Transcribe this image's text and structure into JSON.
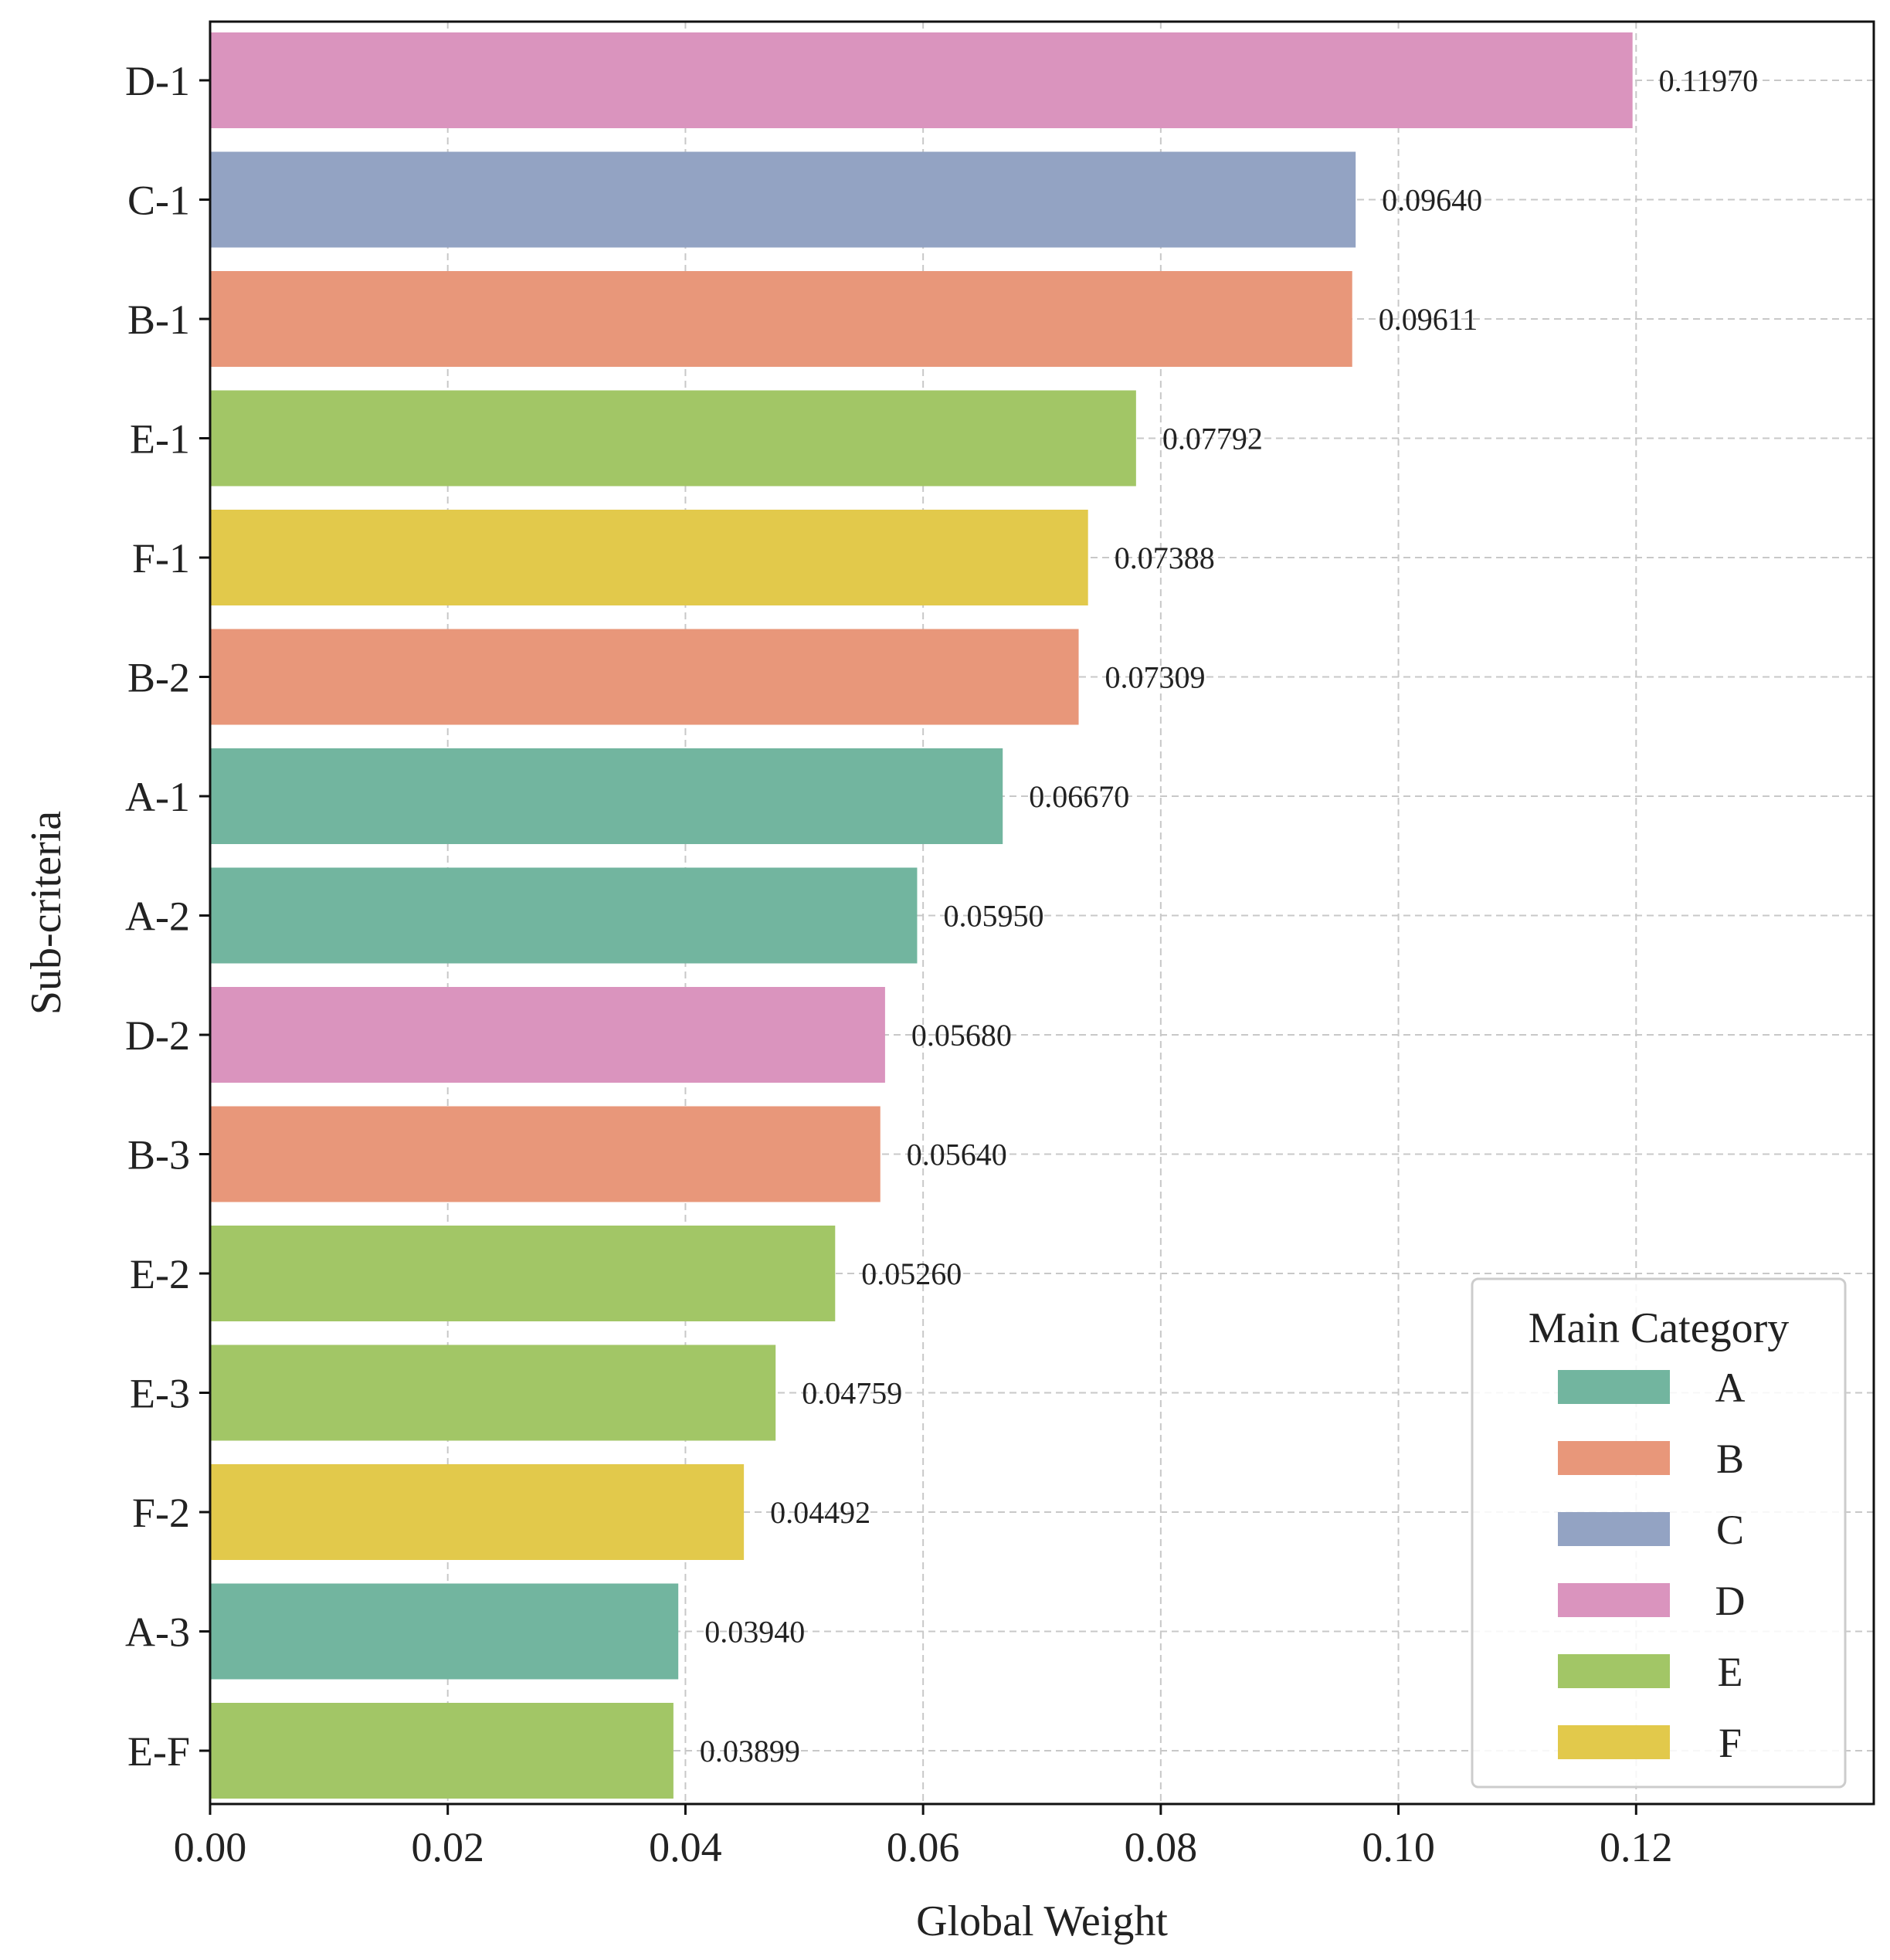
{
  "chart_data": {
    "type": "bar",
    "orientation": "horizontal",
    "xlabel": "Global Weight",
    "ylabel": "Sub-criteria",
    "xlim": [
      0,
      0.14
    ],
    "xticks": [
      0.0,
      0.02,
      0.04,
      0.06,
      0.08,
      0.1,
      0.12
    ],
    "xtick_labels": [
      "0.00",
      "0.02",
      "0.04",
      "0.06",
      "0.08",
      "0.10",
      "0.12"
    ],
    "grid": true,
    "categories": [
      "D-1",
      "C-1",
      "B-1",
      "E-1",
      "F-1",
      "B-2",
      "A-1",
      "A-2",
      "D-2",
      "B-3",
      "E-2",
      "E-3",
      "F-2",
      "A-3",
      "E-F"
    ],
    "values": [
      0.1197,
      0.0964,
      0.09611,
      0.07792,
      0.07388,
      0.07309,
      0.0667,
      0.0595,
      0.0568,
      0.0564,
      0.0526,
      0.04759,
      0.04492,
      0.0394,
      0.03899
    ],
    "value_labels": [
      "0.11970",
      "0.09640",
      "0.09611",
      "0.07792",
      "0.07388",
      "0.07309",
      "0.06670",
      "0.05950",
      "0.05680",
      "0.05640",
      "0.05260",
      "0.04759",
      "0.04492",
      "0.03940",
      "0.03899"
    ],
    "groups": [
      "D",
      "C",
      "B",
      "E",
      "F",
      "B",
      "A",
      "A",
      "D",
      "B",
      "E",
      "E",
      "F",
      "A",
      "E"
    ],
    "legend": {
      "title": "Main Category",
      "position": "lower-right",
      "entries": [
        {
          "label": "A",
          "color": "#72b59f"
        },
        {
          "label": "B",
          "color": "#e8977a"
        },
        {
          "label": "C",
          "color": "#93a3c3"
        },
        {
          "label": "D",
          "color": "#da94be"
        },
        {
          "label": "E",
          "color": "#a2c666"
        },
        {
          "label": "F",
          "color": "#e2c94b"
        }
      ]
    }
  }
}
